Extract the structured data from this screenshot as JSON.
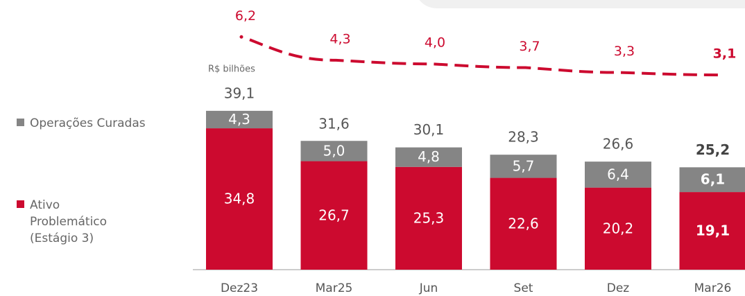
{
  "chart_data": {
    "type": "bar",
    "stacked": true,
    "unit_label": "R$ bilhões",
    "categories": [
      "Dez23",
      "Mar25",
      "Jun",
      "Set",
      "Dez",
      "Mar26"
    ],
    "series": [
      {
        "name": "Ativo Problemático (Estágio 3)",
        "color": "#cc0a2f",
        "values": [
          34.8,
          26.7,
          25.3,
          22.6,
          20.2,
          19.1
        ],
        "value_labels": [
          "34,8",
          "26,7",
          "25,3",
          "22,6",
          "20,2",
          "19,1"
        ]
      },
      {
        "name": "Operações Curadas",
        "color": "#858585",
        "values": [
          4.3,
          5.0,
          4.8,
          5.7,
          6.4,
          6.1
        ],
        "value_labels": [
          "4,3",
          "5,0",
          "4,8",
          "5,7",
          "6,4",
          "6,1"
        ]
      }
    ],
    "totals": {
      "values": [
        39.1,
        31.6,
        30.1,
        28.3,
        26.6,
        25.2
      ],
      "value_labels": [
        "39,1",
        "31,6",
        "30,1",
        "28,3",
        "26,6",
        "25,2"
      ]
    },
    "line": {
      "type": "line",
      "color": "#cc0a2f",
      "dashed": true,
      "values": [
        6.2,
        4.3,
        4.0,
        3.7,
        3.3,
        3.1
      ],
      "value_labels": [
        "6,2",
        "4,3",
        "4,0",
        "3,7",
        "3,3",
        "3,1"
      ]
    }
  }
}
